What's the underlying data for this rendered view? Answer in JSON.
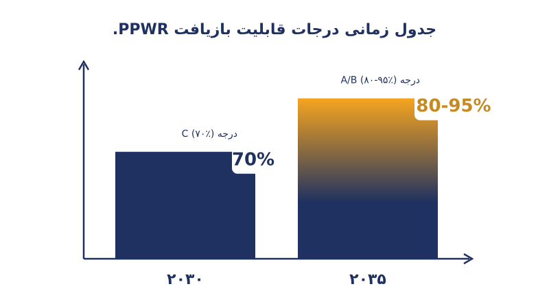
{
  "chart_data": {
    "type": "bar",
    "title": "جدول زمانی درجات قابلیت بازیافت PPWR.",
    "categories": [
      "۲۰۳۰",
      "۲۰۳۵"
    ],
    "values": [
      70,
      95
    ],
    "value_labels": [
      "70%",
      "80-95%"
    ],
    "annotations": [
      "درجه C (۷۰٪)",
      "درجه A/B (۸۰-۹۵٪)"
    ],
    "color": "#1f3161",
    "gradient_top_color": [
      "#1f3161",
      "#f6a51f"
    ],
    "label_colors": [
      "#1f3161",
      "#c68a22"
    ],
    "ylim": [
      20,
      100
    ]
  }
}
